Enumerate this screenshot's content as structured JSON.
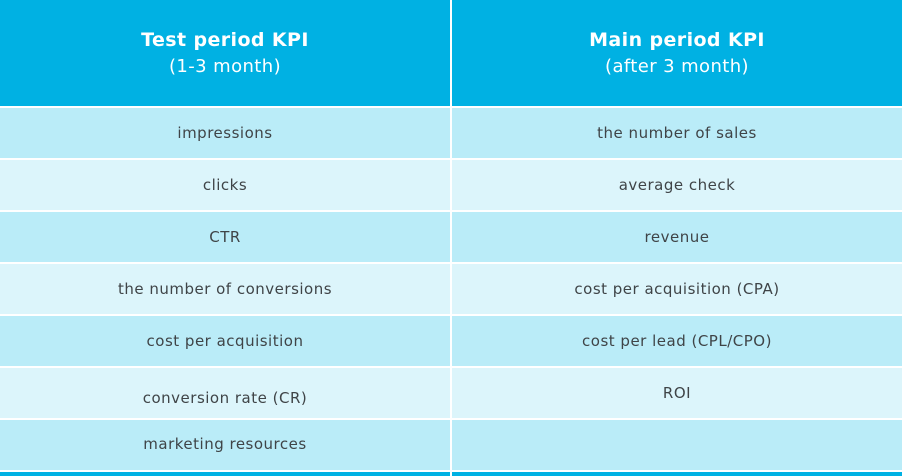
{
  "header": {
    "left_title": "Test period KPI",
    "left_subtitle": "(1-3 month)",
    "right_title": "Main period KPI",
    "right_subtitle": "(after 3 month)"
  },
  "rows": [
    {
      "left": "impressions",
      "right": "the number of sales"
    },
    {
      "left": "clicks",
      "right": "average check"
    },
    {
      "left": "CTR",
      "right": "revenue"
    },
    {
      "left": "the number of conversions",
      "right": "cost per acquisition (CPA)"
    },
    {
      "left": "cost per acquisition",
      "right": "cost per lead (CPL/CPO)"
    },
    {
      "left": "conversion rate (CR)",
      "right": "ROI"
    },
    {
      "left": "marketing resources",
      "right": ""
    }
  ],
  "colors": {
    "header": "#00b1e3",
    "row_dark": "#baecf8",
    "row_light": "#dcf5fb",
    "text": "#3f4447"
  }
}
